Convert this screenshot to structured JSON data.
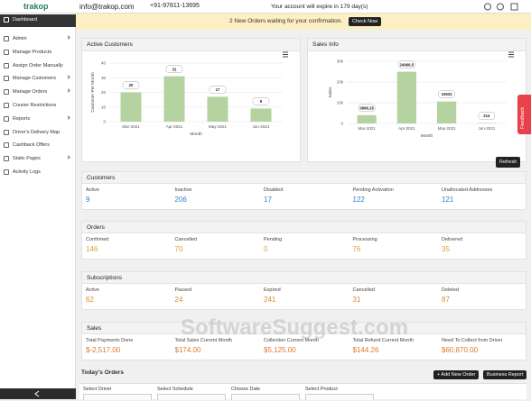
{
  "header": {
    "logo": "trakop",
    "email": "info@trakop.com",
    "phone": "+91-97811-13695",
    "expiry": "Your account will expire in 179 day(s)"
  },
  "sidebar": {
    "items": [
      "Dashboard",
      "Admin",
      "Manage Products",
      "Assign Order Manually",
      "Manage Customers",
      "Manage Orders",
      "Courier Restrictions",
      "Reports",
      "Driver's Delivery Map",
      "Cashback Offers",
      "Static Pages",
      "Activity Logs"
    ],
    "active": 0
  },
  "notice": {
    "text": "2 New Orders waiting for your confirmation.",
    "button": "Check Now"
  },
  "chart_data": [
    {
      "type": "bar",
      "title": "Active Customers",
      "categories": [
        "Mar-2021",
        "Apr-2021",
        "May-2021",
        "Jun-2021"
      ],
      "values": [
        20,
        31,
        17,
        9
      ],
      "color": "#b5d3a0",
      "ylim": [
        0,
        40
      ],
      "yticks": [
        0,
        10,
        20,
        30,
        40
      ],
      "ylabel": "Customer Per Month",
      "xlabel": "Month"
    },
    {
      "type": "bar",
      "title": "Sales Info",
      "categories": [
        "Mar-2021",
        "Apr-2021",
        "May-2021",
        "Jun-2021"
      ],
      "values": [
        3996.25,
        24966.5,
        10632,
        214
      ],
      "color": "#b5d3a0",
      "ylim": [
        0,
        30000
      ],
      "yticks": [
        0,
        {
          "value": 10000,
          "label": "10k"
        },
        {
          "value": 20000,
          "label": "20k"
        },
        {
          "value": 30000,
          "label": "30k"
        }
      ],
      "ylabel": "Sales",
      "xlabel": "Month"
    }
  ],
  "refresh": "Refresh",
  "sections": [
    {
      "title": "Customers",
      "color": "#2f7fd0",
      "stats": [
        {
          "label": "Active",
          "value": 9
        },
        {
          "label": "Inactive",
          "value": 206
        },
        {
          "label": "Disabled",
          "value": 17
        },
        {
          "label": "Pending Activation",
          "value": 122
        },
        {
          "label": "Unallocated Addresses",
          "value": 121
        }
      ]
    },
    {
      "title": "Orders",
      "color": "#d9a33a",
      "stats": [
        {
          "label": "Confirmed",
          "value": 146
        },
        {
          "label": "Cancelled",
          "value": 70
        },
        {
          "label": "Pending",
          "value": 0
        },
        {
          "label": "Processing",
          "value": 76
        },
        {
          "label": "Delivered",
          "value": 35
        }
      ]
    },
    {
      "title": "Subscriptions",
      "color": "#e08a2c",
      "stats": [
        {
          "label": "Active",
          "value": 62
        },
        {
          "label": "Paused",
          "value": 24
        },
        {
          "label": "Expired",
          "value": 241
        },
        {
          "label": "Cancelled",
          "value": 31
        },
        {
          "label": "Deleted",
          "value": 87
        }
      ]
    },
    {
      "title": "Sales",
      "color": "#e0782f",
      "stats": [
        {
          "label": "Total Payments Done",
          "value": "$-2,517.00"
        },
        {
          "label": "Total Sales Current Month",
          "value": "$174.00"
        },
        {
          "label": "Collection Current Month",
          "value": "$5,125.00"
        },
        {
          "label": "Total Refund Current Month",
          "value": "$144.26"
        },
        {
          "label": "Need To Collect from Driver",
          "value": "$60,870.00"
        }
      ]
    }
  ],
  "todays_orders": {
    "title": "Today's Orders",
    "buttons": [
      "+ Add New Order",
      "Business Report"
    ],
    "filters": [
      "Select Driver",
      "Select Schedule",
      "Choose Date",
      "Select Product"
    ]
  },
  "feedback": "Feedback",
  "watermark": "SoftwareSuggest.com"
}
